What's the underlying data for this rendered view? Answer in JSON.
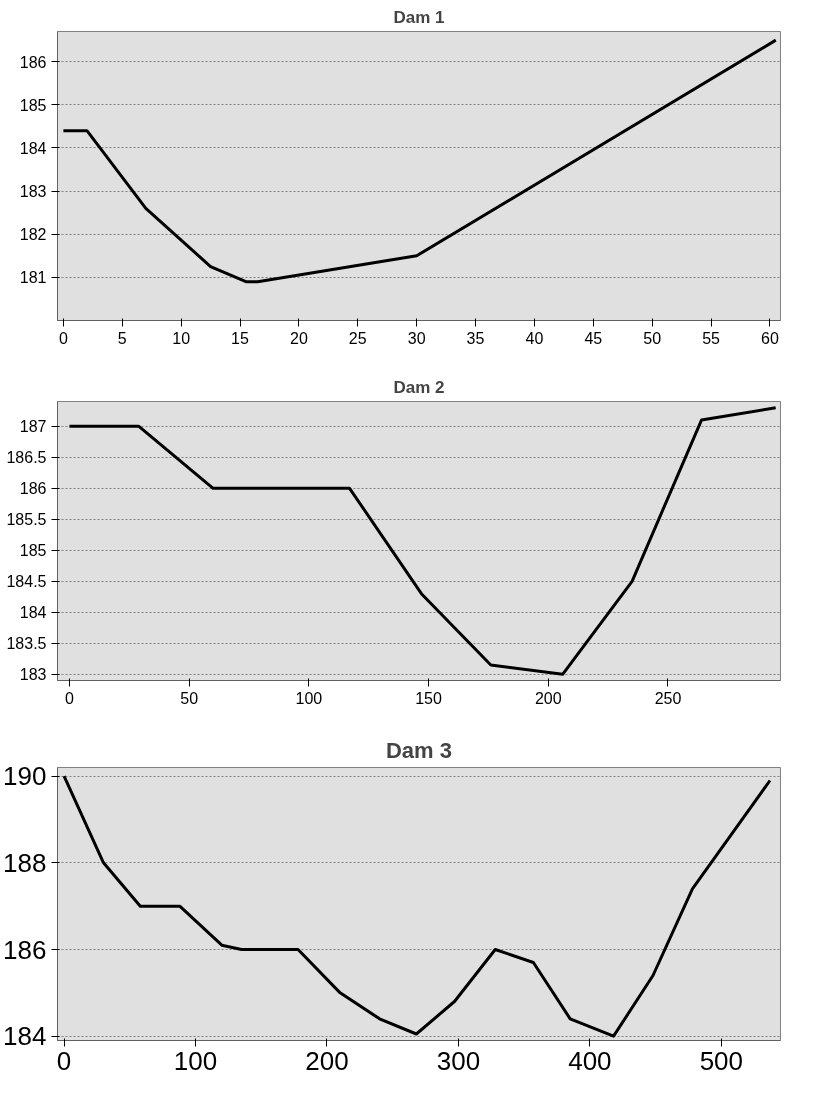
{
  "chart_data": [
    {
      "type": "line",
      "title": "Dam 1",
      "x": [
        0,
        2,
        7,
        12.5,
        15.5,
        16.5,
        30,
        60.5
      ],
      "series": [
        {
          "color": "#000000",
          "values": [
            184.4,
            184.4,
            182.6,
            181.25,
            180.9,
            180.9,
            181.5,
            186.5
          ]
        }
      ],
      "xlim": [
        -0.5,
        60.9
      ],
      "ylim": [
        180,
        186.7
      ],
      "xticks": [
        0,
        5,
        10,
        15,
        20,
        25,
        30,
        35,
        40,
        45,
        50,
        55,
        60
      ],
      "yticks": [
        181,
        182,
        183,
        184,
        185,
        186
      ],
      "grid": "y"
    },
    {
      "type": "line",
      "title": "Dam 2",
      "x": [
        0,
        29,
        60,
        117,
        147,
        176,
        206,
        235,
        264,
        295
      ],
      "series": [
        {
          "color": "#000000",
          "values": [
            187,
            187,
            186,
            186,
            184.3,
            183.15,
            183,
            184.5,
            187.1,
            187.3
          ]
        }
      ],
      "xlim": [
        -5,
        297
      ],
      "ylim": [
        182.9,
        187.4
      ],
      "xticks": [
        0,
        50,
        100,
        150,
        200,
        250
      ],
      "yticks": [
        183,
        183.5,
        184,
        184.5,
        185,
        185.5,
        186,
        186.5,
        187
      ],
      "grid": "y"
    },
    {
      "type": "line",
      "title": "Dam 3",
      "x": [
        0,
        30,
        58,
        88,
        120,
        135,
        178,
        210,
        240,
        268,
        297,
        328,
        357,
        385,
        418,
        448,
        478,
        537
      ],
      "series": [
        {
          "color": "#000000",
          "values": [
            190,
            188,
            187,
            187,
            186.1,
            186,
            186,
            185,
            184.4,
            184.05,
            184.8,
            186,
            185.7,
            184.4,
            184,
            185.4,
            187.4,
            189.9
          ]
        }
      ],
      "xlim": [
        -5,
        545
      ],
      "ylim": [
        183.9,
        190.2
      ],
      "xticks": [
        0,
        100,
        200,
        300,
        400,
        500
      ],
      "yticks": [
        184,
        186,
        188,
        190
      ],
      "grid": "y"
    }
  ]
}
